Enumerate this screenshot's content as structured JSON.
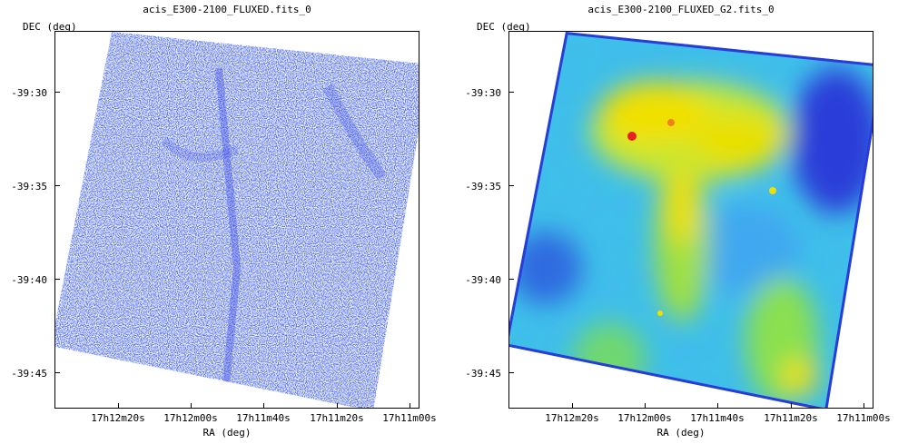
{
  "left_panel": {
    "title": "acis_E300-2100_FLUXED.fits_0",
    "y_axis_label": "DEC (deg)",
    "x_axis_label": "RA (deg)",
    "y_ticks": [
      "-39:30",
      "-39:35",
      "-39:40",
      "-39:45"
    ],
    "x_ticks": [
      "17h12m20s",
      "17h12m00s",
      "17h11m40s",
      "17h11m20s",
      "17h11m00s"
    ],
    "colormap": "blue-white"
  },
  "right_panel": {
    "title": "acis_E300-2100_FLUXED_G2.fits_0",
    "y_axis_label": "DEC (deg)",
    "x_axis_label": "RA (deg)",
    "y_ticks": [
      "-39:30",
      "-39:35",
      "-39:40",
      "-39:45"
    ],
    "x_ticks": [
      "17h12m20s",
      "17h12m00s",
      "17h11m40s",
      "17h11m20s",
      "17h11m00s"
    ],
    "colormap": "rainbow"
  },
  "colors": {
    "left_pixel": "#2233dd",
    "right_low": "#2a3cd8",
    "right_mid": "#3ec8e8",
    "right_high": "#f0e000",
    "right_peak": "#e82020"
  }
}
